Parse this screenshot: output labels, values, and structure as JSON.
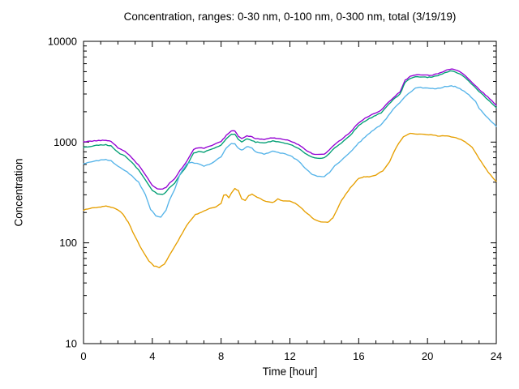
{
  "chart": {
    "title": "Concentration, ranges: 0-30 nm, 0-100 nm, 0-300 nm, total (3/19/19)",
    "xlabel": "Time [hour]",
    "ylabel": "Concentration"
  },
  "chart_data": {
    "type": "line",
    "title": "Concentration, ranges: 0-30 nm, 0-100 nm, 0-300 nm, total (3/19/19)",
    "xlabel": "Time [hour]",
    "ylabel": "Concentration",
    "x_range": [
      0,
      24
    ],
    "x_major_ticks": [
      0,
      4,
      8,
      12,
      16,
      20,
      24
    ],
    "x_minor_step": 1,
    "y_scale": "log10",
    "y_range": [
      10,
      10000
    ],
    "y_major_ticks": [
      10,
      100,
      1000,
      10000
    ],
    "grid": false,
    "legend_position": "none",
    "frame_color": "#000000",
    "series": [
      {
        "name": "total",
        "color": "#9400D3",
        "points": [
          [
            0,
            1000
          ],
          [
            0.5,
            1025
          ],
          [
            1,
            1040
          ],
          [
            1.3,
            1045
          ],
          [
            1.6,
            1020
          ],
          [
            2,
            880
          ],
          [
            2.4,
            810
          ],
          [
            2.8,
            700
          ],
          [
            3.2,
            590
          ],
          [
            3.6,
            470
          ],
          [
            4,
            370
          ],
          [
            4.3,
            345
          ],
          [
            4.6,
            340
          ],
          [
            4.8,
            355
          ],
          [
            5,
            395
          ],
          [
            5.3,
            430
          ],
          [
            5.6,
            520
          ],
          [
            6,
            640
          ],
          [
            6.4,
            850
          ],
          [
            6.7,
            880
          ],
          [
            7,
            870
          ],
          [
            7.3,
            905
          ],
          [
            7.6,
            950
          ],
          [
            8,
            1010
          ],
          [
            8.3,
            1160
          ],
          [
            8.6,
            1290
          ],
          [
            8.8,
            1300
          ],
          [
            9,
            1140
          ],
          [
            9.2,
            1090
          ],
          [
            9.5,
            1155
          ],
          [
            9.8,
            1125
          ],
          [
            10,
            1080
          ],
          [
            10.5,
            1065
          ],
          [
            11,
            1105
          ],
          [
            11.3,
            1085
          ],
          [
            11.6,
            1065
          ],
          [
            12,
            1030
          ],
          [
            12.5,
            945
          ],
          [
            13,
            815
          ],
          [
            13.3,
            770
          ],
          [
            13.6,
            750
          ],
          [
            14,
            755
          ],
          [
            14.3,
            840
          ],
          [
            14.6,
            950
          ],
          [
            15,
            1060
          ],
          [
            15.5,
            1250
          ],
          [
            16,
            1560
          ],
          [
            16.5,
            1780
          ],
          [
            17,
            1950
          ],
          [
            17.3,
            2060
          ],
          [
            17.6,
            2350
          ],
          [
            18,
            2750
          ],
          [
            18.4,
            3150
          ],
          [
            18.7,
            4100
          ],
          [
            19,
            4500
          ],
          [
            19.3,
            4620
          ],
          [
            19.6,
            4650
          ],
          [
            20,
            4600
          ],
          [
            20.3,
            4630
          ],
          [
            20.6,
            4760
          ],
          [
            21,
            5100
          ],
          [
            21.3,
            5300
          ],
          [
            21.6,
            5250
          ],
          [
            22,
            4850
          ],
          [
            22.3,
            4400
          ],
          [
            22.6,
            3900
          ],
          [
            23,
            3350
          ],
          [
            23.5,
            2800
          ],
          [
            24,
            2320
          ]
        ]
      },
      {
        "name": "0-300 nm",
        "color": "#009E73",
        "points": [
          [
            0,
            885
          ],
          [
            0.5,
            915
          ],
          [
            1,
            935
          ],
          [
            1.3,
            940
          ],
          [
            1.6,
            915
          ],
          [
            2,
            790
          ],
          [
            2.4,
            725
          ],
          [
            2.8,
            630
          ],
          [
            3.2,
            530
          ],
          [
            3.6,
            420
          ],
          [
            4,
            330
          ],
          [
            4.3,
            308
          ],
          [
            4.6,
            303
          ],
          [
            4.8,
            318
          ],
          [
            5,
            355
          ],
          [
            5.3,
            388
          ],
          [
            5.6,
            470
          ],
          [
            6,
            580
          ],
          [
            6.4,
            775
          ],
          [
            6.7,
            805
          ],
          [
            7,
            795
          ],
          [
            7.3,
            830
          ],
          [
            7.6,
            875
          ],
          [
            8,
            930
          ],
          [
            8.3,
            1070
          ],
          [
            8.6,
            1195
          ],
          [
            8.8,
            1205
          ],
          [
            9,
            1055
          ],
          [
            9.2,
            1010
          ],
          [
            9.5,
            1070
          ],
          [
            9.8,
            1040
          ],
          [
            10,
            1000
          ],
          [
            10.5,
            985
          ],
          [
            11,
            1025
          ],
          [
            11.3,
            1005
          ],
          [
            11.6,
            985
          ],
          [
            12,
            950
          ],
          [
            12.5,
            870
          ],
          [
            13,
            750
          ],
          [
            13.3,
            710
          ],
          [
            13.6,
            692
          ],
          [
            14,
            697
          ],
          [
            14.3,
            775
          ],
          [
            14.6,
            880
          ],
          [
            15,
            985
          ],
          [
            15.5,
            1165
          ],
          [
            16,
            1465
          ],
          [
            16.5,
            1675
          ],
          [
            17,
            1840
          ],
          [
            17.3,
            1950
          ],
          [
            17.6,
            2230
          ],
          [
            18,
            2620
          ],
          [
            18.4,
            3000
          ],
          [
            18.7,
            3920
          ],
          [
            19,
            4300
          ],
          [
            19.3,
            4420
          ],
          [
            19.6,
            4450
          ],
          [
            20,
            4400
          ],
          [
            20.3,
            4430
          ],
          [
            20.6,
            4560
          ],
          [
            21,
            4880
          ],
          [
            21.3,
            5060
          ],
          [
            21.6,
            5010
          ],
          [
            22,
            4630
          ],
          [
            22.3,
            4200
          ],
          [
            22.6,
            3720
          ],
          [
            23,
            3190
          ],
          [
            23.5,
            2660
          ],
          [
            24,
            2200
          ]
        ]
      },
      {
        "name": "0-100 nm",
        "color": "#56B4E9",
        "points": [
          [
            0,
            605
          ],
          [
            0.5,
            640
          ],
          [
            1,
            663
          ],
          [
            1.3,
            670
          ],
          [
            1.6,
            652
          ],
          [
            2,
            580
          ],
          [
            2.4,
            525
          ],
          [
            2.8,
            465
          ],
          [
            3.2,
            400
          ],
          [
            3.6,
            300
          ],
          [
            3.9,
            215
          ],
          [
            4.2,
            186
          ],
          [
            4.5,
            180
          ],
          [
            4.8,
            212
          ],
          [
            5,
            265
          ],
          [
            5.3,
            340
          ],
          [
            5.6,
            480
          ],
          [
            6,
            610
          ],
          [
            6.3,
            625
          ],
          [
            6.6,
            612
          ],
          [
            7,
            580
          ],
          [
            7.3,
            600
          ],
          [
            7.6,
            640
          ],
          [
            8,
            720
          ],
          [
            8.3,
            870
          ],
          [
            8.6,
            965
          ],
          [
            8.8,
            960
          ],
          [
            9,
            875
          ],
          [
            9.2,
            830
          ],
          [
            9.5,
            905
          ],
          [
            9.8,
            868
          ],
          [
            10,
            800
          ],
          [
            10.5,
            762
          ],
          [
            11,
            810
          ],
          [
            11.3,
            788
          ],
          [
            11.6,
            770
          ],
          [
            12,
            738
          ],
          [
            12.5,
            648
          ],
          [
            13,
            528
          ],
          [
            13.3,
            478
          ],
          [
            13.6,
            455
          ],
          [
            14,
            452
          ],
          [
            14.3,
            500
          ],
          [
            14.6,
            580
          ],
          [
            15,
            660
          ],
          [
            15.5,
            790
          ],
          [
            16,
            980
          ],
          [
            16.5,
            1180
          ],
          [
            17,
            1380
          ],
          [
            17.3,
            1480
          ],
          [
            17.6,
            1700
          ],
          [
            18,
            2120
          ],
          [
            18.4,
            2450
          ],
          [
            18.7,
            2850
          ],
          [
            19,
            3120
          ],
          [
            19.3,
            3430
          ],
          [
            19.6,
            3480
          ],
          [
            20,
            3420
          ],
          [
            20.3,
            3400
          ],
          [
            20.6,
            3410
          ],
          [
            21,
            3540
          ],
          [
            21.3,
            3620
          ],
          [
            21.6,
            3560
          ],
          [
            22,
            3300
          ],
          [
            22.4,
            2950
          ],
          [
            22.8,
            2520
          ],
          [
            23,
            2150
          ],
          [
            23.5,
            1750
          ],
          [
            24,
            1430
          ]
        ]
      },
      {
        "name": "0-30 nm",
        "color": "#E69F00",
        "points": [
          [
            0,
            212
          ],
          [
            0.5,
            222
          ],
          [
            1,
            228
          ],
          [
            1.3,
            231
          ],
          [
            1.6,
            226
          ],
          [
            2,
            212
          ],
          [
            2.3,
            193
          ],
          [
            2.6,
            160
          ],
          [
            3,
            115
          ],
          [
            3.4,
            85
          ],
          [
            3.8,
            66
          ],
          [
            4.1,
            59
          ],
          [
            4.4,
            57
          ],
          [
            4.7,
            62
          ],
          [
            5,
            75
          ],
          [
            5.5,
            105
          ],
          [
            6,
            150
          ],
          [
            6.5,
            190
          ],
          [
            7,
            207
          ],
          [
            7.4,
            220
          ],
          [
            7.7,
            228
          ],
          [
            8,
            245
          ],
          [
            8.15,
            295
          ],
          [
            8.3,
            302
          ],
          [
            8.45,
            282
          ],
          [
            8.6,
            315
          ],
          [
            8.8,
            345
          ],
          [
            9,
            332
          ],
          [
            9.2,
            272
          ],
          [
            9.4,
            262
          ],
          [
            9.6,
            295
          ],
          [
            9.8,
            305
          ],
          [
            10,
            290
          ],
          [
            10.3,
            272
          ],
          [
            10.6,
            258
          ],
          [
            11,
            252
          ],
          [
            11.3,
            272
          ],
          [
            11.6,
            262
          ],
          [
            12,
            258
          ],
          [
            12.3,
            248
          ],
          [
            12.6,
            225
          ],
          [
            13,
            196
          ],
          [
            13.4,
            172
          ],
          [
            13.8,
            161
          ],
          [
            14.2,
            159
          ],
          [
            14.5,
            178
          ],
          [
            15,
            262
          ],
          [
            15.5,
            352
          ],
          [
            16,
            438
          ],
          [
            16.3,
            452
          ],
          [
            16.6,
            452
          ],
          [
            17,
            468
          ],
          [
            17.4,
            520
          ],
          [
            17.8,
            640
          ],
          [
            18.2,
            900
          ],
          [
            18.6,
            1130
          ],
          [
            19,
            1215
          ],
          [
            19.4,
            1205
          ],
          [
            19.8,
            1195
          ],
          [
            20.2,
            1175
          ],
          [
            20.6,
            1150
          ],
          [
            21,
            1155
          ],
          [
            21.4,
            1125
          ],
          [
            21.8,
            1085
          ],
          [
            22.2,
            1010
          ],
          [
            22.6,
            880
          ],
          [
            23,
            690
          ],
          [
            23.4,
            540
          ],
          [
            23.8,
            440
          ],
          [
            24,
            408
          ]
        ]
      }
    ]
  }
}
